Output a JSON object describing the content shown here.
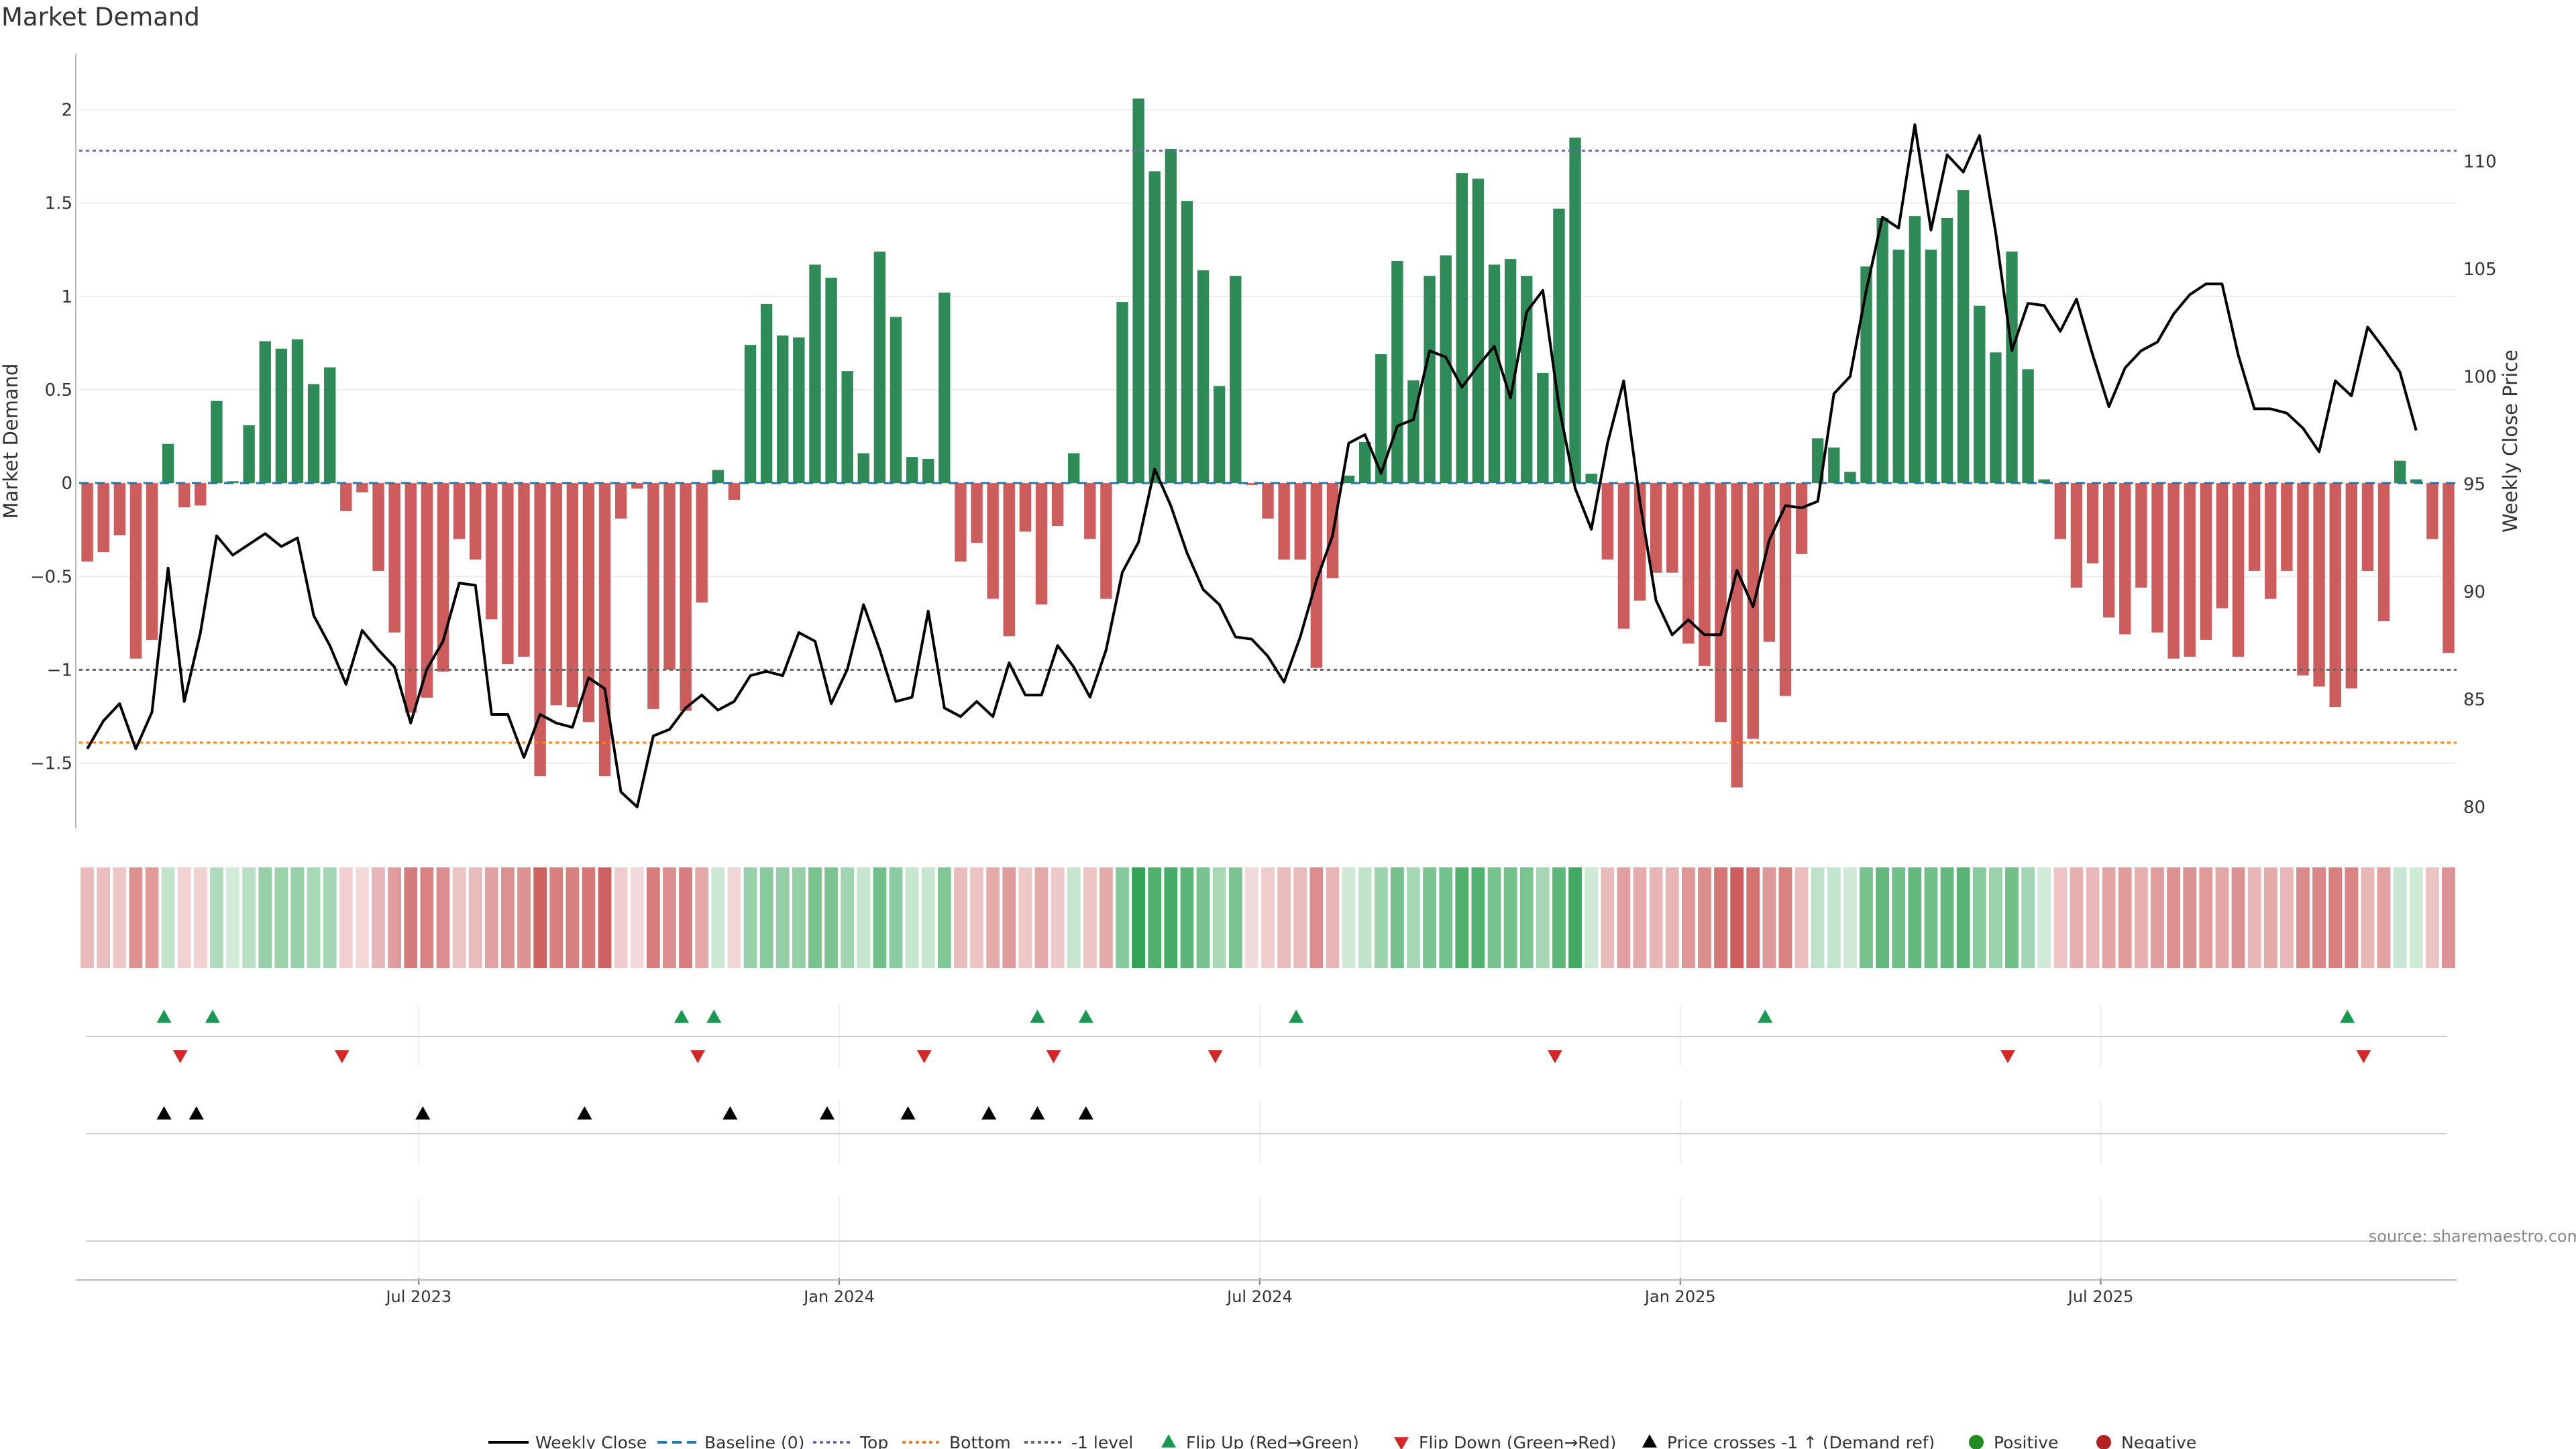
{
  "chart_data": {
    "type": "bar",
    "title": "Market Demand",
    "ylabel": "Market Demand",
    "y2label": "Weekly Close Price",
    "ylim": [
      -1.85,
      2.3
    ],
    "y2lim": [
      79,
      115
    ],
    "yticks": [
      2,
      1.5,
      1,
      0.5,
      0,
      -0.5,
      -1,
      -1.5
    ],
    "ytick_labels": [
      "2",
      "1.5",
      "1",
      "0.5",
      "0",
      "−0.5",
      "−1",
      "−1.5"
    ],
    "y2ticks": [
      110,
      105,
      100,
      95,
      90,
      85,
      80
    ],
    "x_tick_labels": [
      "Jul 2023",
      "Jan 2024",
      "Jul 2024",
      "Jan 2025",
      "Jul 2025"
    ],
    "x_tick_weeks": [
      21,
      47,
      73,
      99,
      125
    ],
    "reference_lines": {
      "baseline": 0,
      "top": 1.78,
      "bottom": -1.39,
      "minus_one_level": -1
    },
    "demand": [
      -0.42,
      -0.37,
      -0.28,
      -0.94,
      -0.84,
      0.21,
      -0.13,
      -0.12,
      0.44,
      0.01,
      0.31,
      0.76,
      0.72,
      0.77,
      0.53,
      0.62,
      -0.15,
      -0.05,
      -0.47,
      -0.8,
      -1.23,
      -1.15,
      -1.01,
      -0.3,
      -0.41,
      -0.73,
      -0.97,
      -0.93,
      -1.57,
      -1.19,
      -1.2,
      -1.28,
      -1.57,
      -0.19,
      -0.03,
      -1.21,
      -1.0,
      -1.22,
      -0.64,
      0.07,
      -0.09,
      0.74,
      0.96,
      0.79,
      0.78,
      1.17,
      1.1,
      0.6,
      0.16,
      1.24,
      0.89,
      0.14,
      0.13,
      1.02,
      -0.42,
      -0.32,
      -0.62,
      -0.82,
      -0.26,
      -0.65,
      -0.23,
      0.16,
      -0.3,
      -0.62,
      0.97,
      2.06,
      1.67,
      1.79,
      1.51,
      1.14,
      0.52,
      1.11,
      -0.01,
      -0.19,
      -0.41,
      -0.41,
      -0.99,
      -0.51,
      0.04,
      0.22,
      0.69,
      1.19,
      0.55,
      1.11,
      1.22,
      1.66,
      1.63,
      1.17,
      1.2,
      1.11,
      0.59,
      1.47,
      1.85,
      0.05,
      -0.41,
      -0.78,
      -0.63,
      -0.48,
      -0.48,
      -0.86,
      -0.98,
      -1.28,
      -1.63,
      -1.37,
      -0.85,
      -1.14,
      -0.38,
      0.24,
      0.19,
      0.06,
      1.16,
      1.42,
      1.25,
      1.43,
      1.25,
      1.42,
      1.57,
      0.95,
      0.7,
      1.24,
      0.61,
      0.02,
      -0.3,
      -0.56,
      -0.43,
      -0.72,
      -0.81,
      -0.56,
      -0.8,
      -0.94,
      -0.93,
      -0.84,
      -0.67,
      -0.93,
      -0.47,
      -0.62,
      -0.47,
      -1.03,
      -1.09,
      -1.2,
      -1.1,
      -0.47,
      -0.74,
      0.12,
      0.02,
      -0.3,
      -0.91
    ],
    "weekly_close": [
      82.7,
      84.0,
      84.8,
      82.7,
      84.4,
      91.1,
      84.9,
      88.1,
      92.6,
      91.7,
      92.2,
      92.7,
      92.1,
      92.5,
      88.9,
      87.5,
      85.7,
      88.2,
      87.3,
      86.5,
      83.9,
      86.4,
      87.7,
      90.4,
      90.3,
      84.3,
      84.3,
      82.3,
      84.3,
      83.9,
      83.7,
      86.0,
      85.5,
      80.7,
      80.0,
      83.3,
      83.6,
      84.6,
      85.2,
      84.5,
      84.9,
      86.1,
      86.3,
      86.1,
      88.1,
      87.7,
      84.8,
      86.4,
      89.4,
      87.3,
      84.9,
      85.1,
      89.1,
      84.6,
      84.2,
      84.9,
      84.2,
      86.7,
      85.2,
      85.2,
      87.5,
      86.5,
      85.1,
      87.3,
      90.9,
      92.3,
      95.7,
      94.0,
      91.8,
      90.1,
      89.4,
      87.9,
      87.8,
      87.0,
      85.8,
      87.9,
      90.5,
      92.6,
      96.9,
      97.3,
      95.5,
      97.7,
      98.0,
      101.2,
      100.9,
      99.5,
      100.5,
      101.4,
      99.0,
      103.0,
      104.0,
      98.6,
      94.8,
      92.9,
      96.9,
      99.8,
      94.2,
      89.6,
      88.0,
      88.7,
      88.0,
      88.0,
      91.0,
      89.3,
      92.4,
      94.0,
      93.9,
      94.2,
      99.2,
      100.0,
      104.0,
      107.4,
      106.9,
      111.7,
      106.8,
      110.3,
      109.5,
      111.2,
      106.7,
      101.2,
      103.4,
      103.3,
      102.1,
      103.6,
      101.0,
      98.6,
      100.4,
      101.2,
      101.6,
      102.9,
      103.8,
      104.3,
      104.3,
      101.0,
      98.5,
      98.5,
      98.3,
      97.6,
      96.5,
      99.8,
      99.1,
      102.3,
      101.3,
      100.2,
      97.5
    ],
    "flip_up_weeks": [
      5,
      8,
      37,
      39,
      59,
      62,
      75,
      104,
      140
    ],
    "flip_down_weeks": [
      6,
      16,
      38,
      52,
      60,
      70,
      91,
      119,
      141
    ],
    "price_cross_weeks": [
      5,
      7,
      21,
      31,
      40,
      46,
      51,
      56,
      59,
      62
    ],
    "source": "source: sharemaestro.com",
    "legend": [
      {
        "label": "Weekly Close"
      },
      {
        "label": "Baseline (0)"
      },
      {
        "label": "Top"
      },
      {
        "label": "Bottom"
      },
      {
        "label": "-1 level"
      },
      {
        "label": "Flip Up (Red→Green)"
      },
      {
        "label": "Flip Down (Green→Red)"
      },
      {
        "label": "Price crosses -1 ↑ (Demand ref)"
      },
      {
        "label": "Positive"
      },
      {
        "label": "Negative"
      }
    ],
    "colors": {
      "positive": "#2e8b57",
      "negative": "#cd5c5c",
      "price": "#000000",
      "baseline": "#1f77b4",
      "top": "#6a6aa8",
      "bottom": "#ff7f0e",
      "minus_one": "#666666",
      "flip_up": "#1a9850",
      "flip_down": "#d62728",
      "cross": "#000000",
      "positive_dot": "#228b22",
      "negative_dot": "#b22222",
      "heat_pos": "#31a354",
      "heat_neg": "#cd5c5c"
    }
  }
}
